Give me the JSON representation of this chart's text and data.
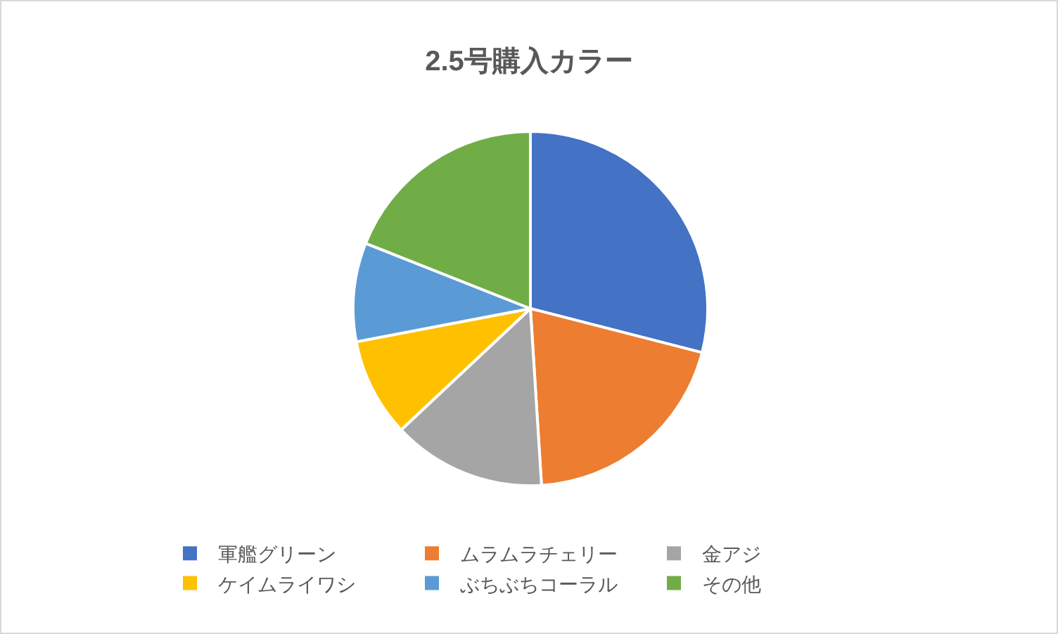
{
  "chart_data": {
    "type": "pie",
    "title": "2.5号購入カラー",
    "categories": [
      "軍艦グリーン",
      "ムラムラチェリー",
      "金アジ",
      "ケイムライワシ",
      "ぶちぶちコーラル",
      "その他"
    ],
    "values": [
      29,
      20,
      14,
      9,
      9,
      19
    ],
    "colors": [
      "#4472c4",
      "#ed7d31",
      "#a5a5a5",
      "#ffc000",
      "#5b9bd5",
      "#70ad47"
    ],
    "legend": "bottom"
  }
}
